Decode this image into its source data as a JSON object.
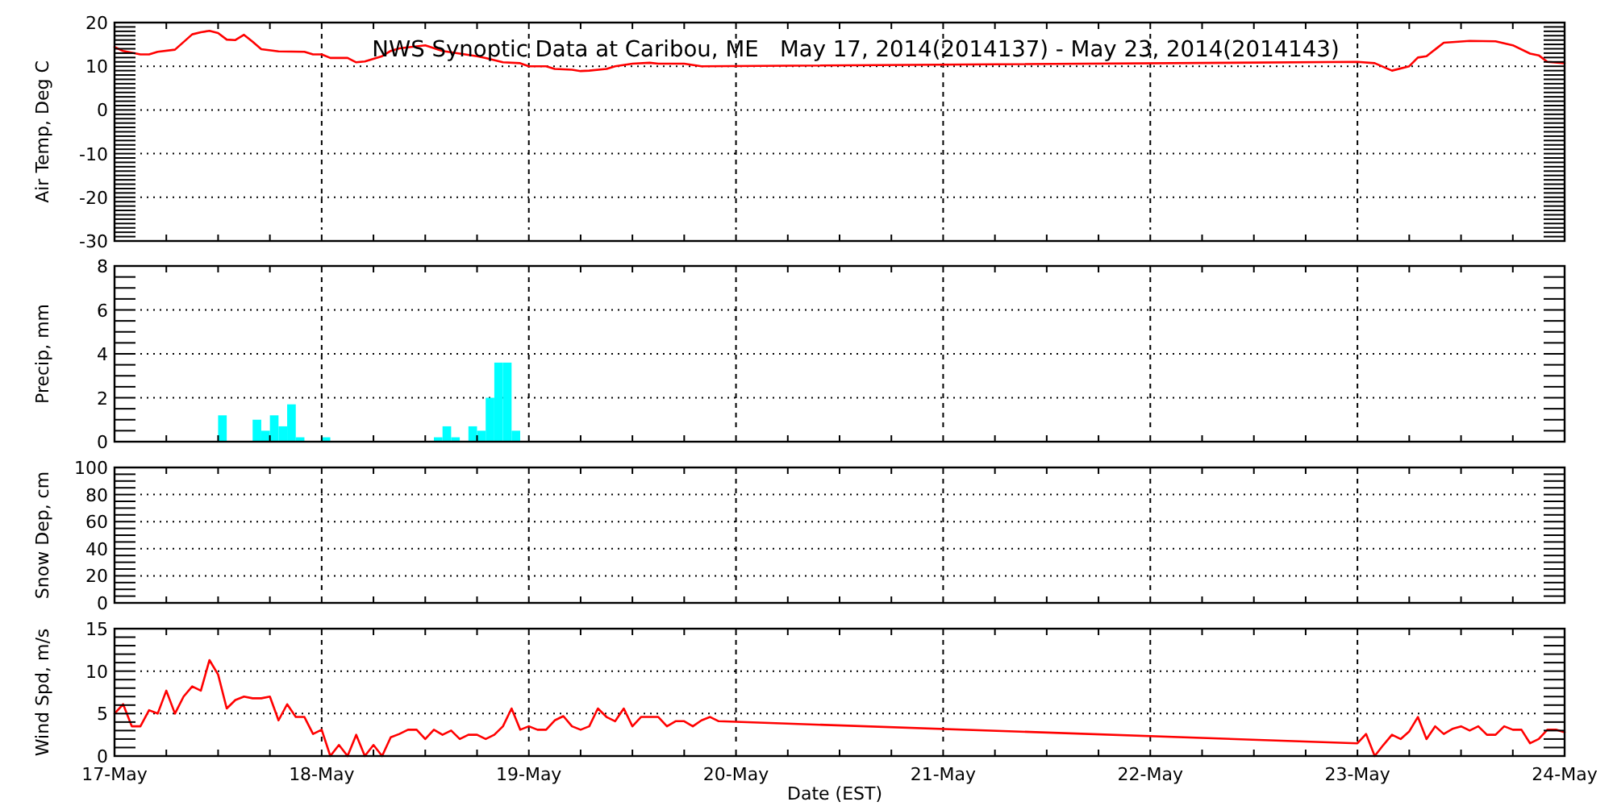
{
  "chart_data": [
    {
      "type": "line",
      "title": "NWS Synoptic Data at Caribou, ME   May 17, 2014(2014137) - May 23, 2014(2014143)",
      "ylabel": "Air Temp, Deg C",
      "color": "#ff0000",
      "x": [
        "2014-05-17T00:00",
        "2014-05-17T01:00",
        "2014-05-17T03:00",
        "2014-05-17T04:00",
        "2014-05-17T05:00",
        "2014-05-17T07:00",
        "2014-05-17T09:00",
        "2014-05-17T10:00",
        "2014-05-17T11:00",
        "2014-05-17T12:00",
        "2014-05-17T13:00",
        "2014-05-17T14:00",
        "2014-05-17T15:00",
        "2014-05-17T16:00",
        "2014-05-17T17:00",
        "2014-05-17T19:00",
        "2014-05-17T22:00",
        "2014-05-17T23:00",
        "2014-05-18T00:00",
        "2014-05-18T01:00",
        "2014-05-18T03:00",
        "2014-05-18T04:00",
        "2014-05-18T05:00",
        "2014-05-18T07:00",
        "2014-05-18T08:00",
        "2014-05-18T09:00",
        "2014-05-18T12:00",
        "2014-05-18T14:00",
        "2014-05-18T18:00",
        "2014-05-18T19:00",
        "2014-05-18T21:00",
        "2014-05-18T23:00",
        "2014-05-19T00:00",
        "2014-05-19T02:00",
        "2014-05-19T03:00",
        "2014-05-19T05:00",
        "2014-05-19T06:00",
        "2014-05-19T07:00",
        "2014-05-19T09:00",
        "2014-05-19T10:00",
        "2014-05-19T12:00",
        "2014-05-19T14:00",
        "2014-05-19T15:00",
        "2014-05-19T18:00",
        "2014-05-19T20:00",
        "2014-05-23T00:00",
        "2014-05-23T02:00",
        "2014-05-23T04:00",
        "2014-05-23T06:00",
        "2014-05-23T07:00",
        "2014-05-23T08:00",
        "2014-05-23T10:00",
        "2014-05-23T13:00",
        "2014-05-23T16:00",
        "2014-05-23T18:00",
        "2014-05-23T20:00",
        "2014-05-23T21:00",
        "2014-05-23T22:00",
        "2014-05-24T00:00"
      ],
      "values": [
        14.4,
        13.5,
        12.7,
        12.7,
        13.3,
        13.8,
        17.3,
        17.8,
        18.1,
        17.6,
        16.1,
        16.0,
        17.2,
        15.6,
        13.9,
        13.4,
        13.3,
        12.7,
        12.7,
        11.9,
        11.9,
        10.9,
        11.1,
        12.3,
        13.5,
        14.1,
        14.8,
        13.5,
        12.3,
        11.9,
        10.9,
        10.7,
        10.0,
        10.0,
        9.4,
        9.2,
        8.9,
        9.0,
        9.4,
        10.0,
        10.6,
        10.8,
        10.6,
        10.6,
        10.0,
        11.0,
        10.7,
        9.0,
        10.0,
        12.0,
        12.3,
        15.4,
        15.8,
        15.7,
        14.8,
        12.9,
        12.5,
        11.0,
        10.7
      ],
      "xlim": [
        "2014-05-17T00:00",
        "2014-05-24T00:00"
      ],
      "xticks": [
        "2014-05-17T00:00",
        {
          "value": "2014-05-17T06:00",
          "label": null
        },
        {
          "value": "2014-05-17T12:00",
          "label": null
        },
        {
          "value": "2014-05-17T18:00",
          "label": null
        },
        "2014-05-18T00:00",
        {
          "value": "2014-05-18T06:00",
          "label": null
        },
        {
          "value": "2014-05-18T12:00",
          "label": null
        },
        {
          "value": "2014-05-18T18:00",
          "label": null
        },
        "2014-05-19T00:00",
        {
          "value": "2014-05-19T06:00",
          "label": null
        },
        {
          "value": "2014-05-19T12:00",
          "label": null
        },
        {
          "value": "2014-05-19T18:00",
          "label": null
        },
        "2014-05-20T00:00",
        {
          "value": "2014-05-20T06:00",
          "label": null
        },
        {
          "value": "2014-05-20T12:00",
          "label": null
        },
        {
          "value": "2014-05-20T18:00",
          "label": null
        },
        "2014-05-21T00:00",
        {
          "value": "2014-05-21T06:00",
          "label": null
        },
        {
          "value": "2014-05-21T12:00",
          "label": null
        },
        {
          "value": "2014-05-21T18:00",
          "label": null
        },
        "2014-05-22T00:00",
        {
          "value": "2014-05-22T06:00",
          "label": null
        },
        {
          "value": "2014-05-22T12:00",
          "label": null
        },
        {
          "value": "2014-05-22T18:00",
          "label": null
        },
        "2014-05-23T00:00",
        {
          "value": "2014-05-23T06:00",
          "label": null
        },
        {
          "value": "2014-05-23T12:00",
          "label": null
        },
        {
          "value": "2014-05-23T18:00",
          "label": null
        },
        "2014-05-24T00:00"
      ],
      "ylim": [
        -30,
        20
      ],
      "yticks": [
        -30,
        {
          "value": -29,
          "label": null
        },
        {
          "value": -28,
          "label": null
        },
        {
          "value": -27,
          "label": null
        },
        {
          "value": -26,
          "label": null
        },
        {
          "value": -25,
          "label": null
        },
        {
          "value": -24,
          "label": null
        },
        {
          "value": -23,
          "label": null
        },
        {
          "value": -22,
          "label": null
        },
        {
          "value": -21,
          "label": null
        },
        -20,
        {
          "value": -19,
          "label": null
        },
        {
          "value": -18,
          "label": null
        },
        {
          "value": -17,
          "label": null
        },
        {
          "value": -16,
          "label": null
        },
        {
          "value": -15,
          "label": null
        },
        {
          "value": -14,
          "label": null
        },
        {
          "value": -13,
          "label": null
        },
        {
          "value": -12,
          "label": null
        },
        {
          "value": -11,
          "label": null
        },
        -10,
        {
          "value": -9,
          "label": null
        },
        {
          "value": -8,
          "label": null
        },
        {
          "value": -7,
          "label": null
        },
        {
          "value": -6,
          "label": null
        },
        {
          "value": -5,
          "label": null
        },
        {
          "value": -4,
          "label": null
        },
        {
          "value": -3,
          "label": null
        },
        {
          "value": -2,
          "label": null
        },
        {
          "value": -1,
          "label": null
        },
        0,
        {
          "value": 1,
          "label": null
        },
        {
          "value": 2,
          "label": null
        },
        {
          "value": 3,
          "label": null
        },
        {
          "value": 4,
          "label": null
        },
        {
          "value": 5,
          "label": null
        },
        {
          "value": 6,
          "label": null
        },
        {
          "value": 7,
          "label": null
        },
        {
          "value": 8,
          "label": null
        },
        {
          "value": 9,
          "label": null
        },
        10,
        {
          "value": 11,
          "label": null
        },
        {
          "value": 12,
          "label": null
        },
        {
          "value": 13,
          "label": null
        },
        {
          "value": 14,
          "label": null
        },
        {
          "value": 15,
          "label": null
        },
        {
          "value": 16,
          "label": null
        },
        {
          "value": 17,
          "label": null
        },
        {
          "value": 18,
          "label": null
        },
        {
          "value": 19,
          "label": null
        },
        20
      ],
      "grid": true,
      "tick_labels": "y"
    },
    {
      "type": "bar",
      "ylabel": "Precip, mm",
      "color": "#00ffff",
      "x": [
        "2014-05-17T12:30",
        "2014-05-17T16:30",
        "2014-05-17T17:30",
        "2014-05-17T18:30",
        "2014-05-17T19:30",
        "2014-05-17T20:30",
        "2014-05-17T21:30",
        "2014-05-18T00:30",
        "2014-05-18T13:30",
        "2014-05-18T14:30",
        "2014-05-18T15:30",
        "2014-05-18T17:30",
        "2014-05-18T18:30",
        "2014-05-18T19:30",
        "2014-05-18T20:30",
        "2014-05-18T21:30",
        "2014-05-18T22:30"
      ],
      "values": [
        1.2,
        1.0,
        0.5,
        1.2,
        0.7,
        1.7,
        0.2,
        0.2,
        0.2,
        0.7,
        0.2,
        0.7,
        0.5,
        2.0,
        3.6,
        3.6,
        0.5
      ],
      "xlim": [
        "2014-05-17T00:00",
        "2014-05-24T00:00"
      ],
      "xticks": [
        "2014-05-17T00:00",
        {
          "value": "2014-05-17T06:00",
          "label": null
        },
        {
          "value": "2014-05-17T12:00",
          "label": null
        },
        {
          "value": "2014-05-17T18:00",
          "label": null
        },
        "2014-05-18T00:00",
        {
          "value": "2014-05-18T06:00",
          "label": null
        },
        {
          "value": "2014-05-18T12:00",
          "label": null
        },
        {
          "value": "2014-05-18T18:00",
          "label": null
        },
        "2014-05-19T00:00",
        {
          "value": "2014-05-19T06:00",
          "label": null
        },
        {
          "value": "2014-05-19T12:00",
          "label": null
        },
        {
          "value": "2014-05-19T18:00",
          "label": null
        },
        "2014-05-20T00:00",
        {
          "value": "2014-05-20T06:00",
          "label": null
        },
        {
          "value": "2014-05-20T12:00",
          "label": null
        },
        {
          "value": "2014-05-20T18:00",
          "label": null
        },
        "2014-05-21T00:00",
        {
          "value": "2014-05-21T06:00",
          "label": null
        },
        {
          "value": "2014-05-21T12:00",
          "label": null
        },
        {
          "value": "2014-05-21T18:00",
          "label": null
        },
        "2014-05-22T00:00",
        {
          "value": "2014-05-22T06:00",
          "label": null
        },
        {
          "value": "2014-05-22T12:00",
          "label": null
        },
        {
          "value": "2014-05-22T18:00",
          "label": null
        },
        "2014-05-23T00:00",
        {
          "value": "2014-05-23T06:00",
          "label": null
        },
        {
          "value": "2014-05-23T12:00",
          "label": null
        },
        {
          "value": "2014-05-23T18:00",
          "label": null
        },
        "2014-05-24T00:00"
      ],
      "ylim": [
        0,
        8
      ],
      "yticks": [
        0,
        {
          "value": 0.5,
          "label": null
        },
        {
          "value": 1,
          "label": null
        },
        {
          "value": 1.5,
          "label": null
        },
        2,
        {
          "value": 2.5,
          "label": null
        },
        {
          "value": 3,
          "label": null
        },
        {
          "value": 3.5,
          "label": null
        },
        4,
        {
          "value": 4.5,
          "label": null
        },
        {
          "value": 5,
          "label": null
        },
        {
          "value": 5.5,
          "label": null
        },
        6,
        {
          "value": 6.5,
          "label": null
        },
        {
          "value": 7,
          "label": null
        },
        {
          "value": 7.5,
          "label": null
        },
        8
      ],
      "grid": true,
      "tick_labels": "y"
    },
    {
      "type": "line",
      "ylabel": "Snow Dep, cm",
      "xlim": [
        "2014-05-17T00:00",
        "2014-05-24T00:00"
      ],
      "xticks": [
        "2014-05-17T00:00",
        {
          "value": "2014-05-17T06:00",
          "label": null
        },
        {
          "value": "2014-05-17T12:00",
          "label": null
        },
        {
          "value": "2014-05-17T18:00",
          "label": null
        },
        "2014-05-18T00:00",
        {
          "value": "2014-05-18T06:00",
          "label": null
        },
        {
          "value": "2014-05-18T12:00",
          "label": null
        },
        {
          "value": "2014-05-18T18:00",
          "label": null
        },
        "2014-05-19T00:00",
        {
          "value": "2014-05-19T06:00",
          "label": null
        },
        {
          "value": "2014-05-19T12:00",
          "label": null
        },
        {
          "value": "2014-05-19T18:00",
          "label": null
        },
        "2014-05-20T00:00",
        {
          "value": "2014-05-20T06:00",
          "label": null
        },
        {
          "value": "2014-05-20T12:00",
          "label": null
        },
        {
          "value": "2014-05-20T18:00",
          "label": null
        },
        "2014-05-21T00:00",
        {
          "value": "2014-05-21T06:00",
          "label": null
        },
        {
          "value": "2014-05-21T12:00",
          "label": null
        },
        {
          "value": "2014-05-21T18:00",
          "label": null
        },
        "2014-05-22T00:00",
        {
          "value": "2014-05-22T06:00",
          "label": null
        },
        {
          "value": "2014-05-22T12:00",
          "label": null
        },
        {
          "value": "2014-05-22T18:00",
          "label": null
        },
        "2014-05-23T00:00",
        {
          "value": "2014-05-23T06:00",
          "label": null
        },
        {
          "value": "2014-05-23T12:00",
          "label": null
        },
        {
          "value": "2014-05-23T18:00",
          "label": null
        },
        "2014-05-24T00:00"
      ],
      "ylim": [
        0,
        100
      ],
      "yticks": [
        0,
        {
          "value": 5,
          "label": null
        },
        {
          "value": 10,
          "label": null
        },
        {
          "value": 15,
          "label": null
        },
        20,
        {
          "value": 25,
          "label": null
        },
        {
          "value": 30,
          "label": null
        },
        {
          "value": 35,
          "label": null
        },
        40,
        {
          "value": 45,
          "label": null
        },
        {
          "value": 50,
          "label": null
        },
        {
          "value": 55,
          "label": null
        },
        60,
        {
          "value": 65,
          "label": null
        },
        {
          "value": 70,
          "label": null
        },
        {
          "value": 75,
          "label": null
        },
        80,
        {
          "value": 85,
          "label": null
        },
        {
          "value": 90,
          "label": null
        },
        {
          "value": 95,
          "label": null
        },
        100
      ],
      "grid": true,
      "tick_labels": "y"
    },
    {
      "type": "line",
      "ylabel": "Wind Spd, m/s",
      "xlabel": "Date (EST)",
      "color": "#ff0000",
      "x": [
        "2014-05-17T00:00",
        "2014-05-17T01:00",
        "2014-05-17T02:00",
        "2014-05-17T03:00",
        "2014-05-17T04:00",
        "2014-05-17T05:00",
        "2014-05-17T06:00",
        "2014-05-17T07:00",
        "2014-05-17T08:00",
        "2014-05-17T09:00",
        "2014-05-17T10:00",
        "2014-05-17T11:00",
        "2014-05-17T12:00",
        "2014-05-17T13:00",
        "2014-05-17T14:00",
        "2014-05-17T15:00",
        "2014-05-17T16:00",
        "2014-05-17T17:00",
        "2014-05-17T18:00",
        "2014-05-17T19:00",
        "2014-05-17T20:00",
        "2014-05-17T21:00",
        "2014-05-17T22:00",
        "2014-05-17T23:00",
        "2014-05-18T00:00",
        "2014-05-18T01:00",
        "2014-05-18T02:00",
        "2014-05-18T03:00",
        "2014-05-18T04:00",
        "2014-05-18T05:00",
        "2014-05-18T06:00",
        "2014-05-18T07:00",
        "2014-05-18T08:00",
        "2014-05-18T09:00",
        "2014-05-18T10:00",
        "2014-05-18T11:00",
        "2014-05-18T12:00",
        "2014-05-18T13:00",
        "2014-05-18T14:00",
        "2014-05-18T15:00",
        "2014-05-18T16:00",
        "2014-05-18T17:00",
        "2014-05-18T18:00",
        "2014-05-18T19:00",
        "2014-05-18T20:00",
        "2014-05-18T21:00",
        "2014-05-18T22:00",
        "2014-05-18T23:00",
        "2014-05-19T00:00",
        "2014-05-19T01:00",
        "2014-05-19T02:00",
        "2014-05-19T03:00",
        "2014-05-19T04:00",
        "2014-05-19T05:00",
        "2014-05-19T06:00",
        "2014-05-19T07:00",
        "2014-05-19T08:00",
        "2014-05-19T09:00",
        "2014-05-19T10:00",
        "2014-05-19T11:00",
        "2014-05-19T12:00",
        "2014-05-19T13:00",
        "2014-05-19T15:00",
        "2014-05-19T16:00",
        "2014-05-19T17:00",
        "2014-05-19T18:00",
        "2014-05-19T19:00",
        "2014-05-19T20:00",
        "2014-05-19T21:00",
        "2014-05-19T22:00",
        "2014-05-23T00:00",
        "2014-05-23T01:00",
        "2014-05-23T02:00",
        "2014-05-23T03:00",
        "2014-05-23T04:00",
        "2014-05-23T05:00",
        "2014-05-23T06:00",
        "2014-05-23T07:00",
        "2014-05-23T08:00",
        "2014-05-23T09:00",
        "2014-05-23T10:00",
        "2014-05-23T11:00",
        "2014-05-23T12:00",
        "2014-05-23T13:00",
        "2014-05-23T14:00",
        "2014-05-23T15:00",
        "2014-05-23T16:00",
        "2014-05-23T17:00",
        "2014-05-23T18:00",
        "2014-05-23T19:00",
        "2014-05-23T20:00",
        "2014-05-23T21:00",
        "2014-05-23T22:00",
        "2014-05-23T23:00",
        "2014-05-24T00:00"
      ],
      "values": [
        5.0,
        6.1,
        3.5,
        3.5,
        5.4,
        5.0,
        7.7,
        5.0,
        7.0,
        8.2,
        7.7,
        11.3,
        9.6,
        5.6,
        6.6,
        7.0,
        6.8,
        6.8,
        7.0,
        4.2,
        6.1,
        4.6,
        4.6,
        2.6,
        3.1,
        0,
        1.3,
        0,
        2.5,
        0,
        1.3,
        0,
        2.2,
        2.6,
        3.1,
        3.1,
        2.0,
        3.1,
        2.5,
        3.0,
        2.0,
        2.5,
        2.5,
        2.0,
        2.5,
        3.5,
        5.6,
        3.1,
        3.5,
        3.1,
        3.1,
        4.2,
        4.7,
        3.5,
        3.1,
        3.5,
        5.6,
        4.6,
        4.1,
        5.6,
        3.5,
        4.6,
        4.6,
        3.5,
        4.1,
        4.1,
        3.5,
        4.2,
        4.6,
        4.1,
        1.5,
        2.6,
        0,
        1.3,
        2.5,
        2.0,
        2.9,
        4.6,
        2.0,
        3.5,
        2.6,
        3.2,
        3.5,
        3.0,
        3.5,
        2.5,
        2.5,
        3.5,
        3.1,
        3.1,
        1.5,
        2.0,
        3.1,
        3.1,
        2.8
      ],
      "xlim": [
        "2014-05-17T00:00",
        "2014-05-24T00:00"
      ],
      "xticks": [
        {
          "value": "2014-05-17T00:00",
          "label": "17-May"
        },
        {
          "value": "2014-05-17T06:00",
          "label": null
        },
        {
          "value": "2014-05-17T12:00",
          "label": null
        },
        {
          "value": "2014-05-17T18:00",
          "label": null
        },
        {
          "value": "2014-05-18T00:00",
          "label": "18-May"
        },
        {
          "value": "2014-05-18T06:00",
          "label": null
        },
        {
          "value": "2014-05-18T12:00",
          "label": null
        },
        {
          "value": "2014-05-18T18:00",
          "label": null
        },
        {
          "value": "2014-05-19T00:00",
          "label": "19-May"
        },
        {
          "value": "2014-05-19T06:00",
          "label": null
        },
        {
          "value": "2014-05-19T12:00",
          "label": null
        },
        {
          "value": "2014-05-19T18:00",
          "label": null
        },
        {
          "value": "2014-05-20T00:00",
          "label": "20-May"
        },
        {
          "value": "2014-05-20T06:00",
          "label": null
        },
        {
          "value": "2014-05-20T12:00",
          "label": null
        },
        {
          "value": "2014-05-20T18:00",
          "label": null
        },
        {
          "value": "2014-05-21T00:00",
          "label": "21-May"
        },
        {
          "value": "2014-05-21T06:00",
          "label": null
        },
        {
          "value": "2014-05-21T12:00",
          "label": null
        },
        {
          "value": "2014-05-21T18:00",
          "label": null
        },
        {
          "value": "2014-05-22T00:00",
          "label": "22-May"
        },
        {
          "value": "2014-05-22T06:00",
          "label": null
        },
        {
          "value": "2014-05-22T12:00",
          "label": null
        },
        {
          "value": "2014-05-22T18:00",
          "label": null
        },
        {
          "value": "2014-05-23T00:00",
          "label": "23-May"
        },
        {
          "value": "2014-05-23T06:00",
          "label": null
        },
        {
          "value": "2014-05-23T12:00",
          "label": null
        },
        {
          "value": "2014-05-23T18:00",
          "label": null
        },
        {
          "value": "2014-05-24T00:00",
          "label": "24-May"
        }
      ],
      "ylim": [
        0,
        15
      ],
      "yticks": [
        0,
        {
          "value": 1,
          "label": null
        },
        {
          "value": 2,
          "label": null
        },
        {
          "value": 3,
          "label": null
        },
        {
          "value": 4,
          "label": null
        },
        5,
        {
          "value": 6,
          "label": null
        },
        {
          "value": 7,
          "label": null
        },
        {
          "value": 8,
          "label": null
        },
        {
          "value": 9,
          "label": null
        },
        10,
        {
          "value": 11,
          "label": null
        },
        {
          "value": 12,
          "label": null
        },
        {
          "value": 13,
          "label": null
        },
        {
          "value": 14,
          "label": null
        },
        15
      ],
      "grid": true
    }
  ]
}
